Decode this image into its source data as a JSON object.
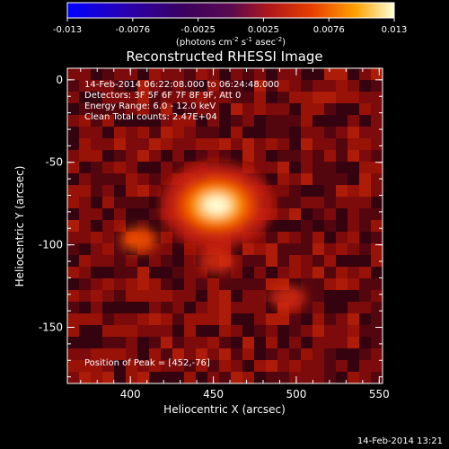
{
  "chart_data": {
    "type": "heatmap",
    "title": "Reconstructed RHESSI Image",
    "xlabel": "Heliocentric X (arcsec)",
    "ylabel": "Heliocentric Y (arcsec)",
    "xlim": [
      362,
      552
    ],
    "ylim": [
      -184,
      7
    ],
    "xticks": [
      400,
      450,
      500,
      550
    ],
    "yticks": [
      0,
      -50,
      -100,
      -150
    ],
    "colorbar": {
      "ticks": [
        "-0.013",
        "-0.0076",
        "-0.0025",
        "0.0025",
        "0.0076",
        "0.013"
      ],
      "range": [
        -0.013,
        0.013
      ],
      "units_text": "(photons cm",
      "units_sup1": "-2",
      "units_mid1": " s",
      "units_sup2": "-1",
      "units_mid2": " asec",
      "units_sup3": "-2",
      "units_end": ")"
    },
    "annotations": [
      "14-Feb-2014 06:22:08.000 to 06:24:48.000",
      "Detectors: 3F 5F 6F 7F 8F 9F, Att 0",
      "Energy Range: 6.0 - 12.0 keV",
      "Clean    Total counts: 2.47E+04"
    ],
    "peak_label": "Position of Peak = [452,-76]",
    "peak": {
      "x": 452,
      "y": -76,
      "value": 0.013
    },
    "sources": [
      {
        "x": 452,
        "y": -76,
        "value": 0.013
      },
      {
        "x": 405,
        "y": -97,
        "value": 0.006
      },
      {
        "x": 495,
        "y": -132,
        "value": 0.005
      },
      {
        "x": 452,
        "y": -110,
        "value": 0.004
      }
    ],
    "timestamp": "14-Feb-2014 13:21"
  }
}
